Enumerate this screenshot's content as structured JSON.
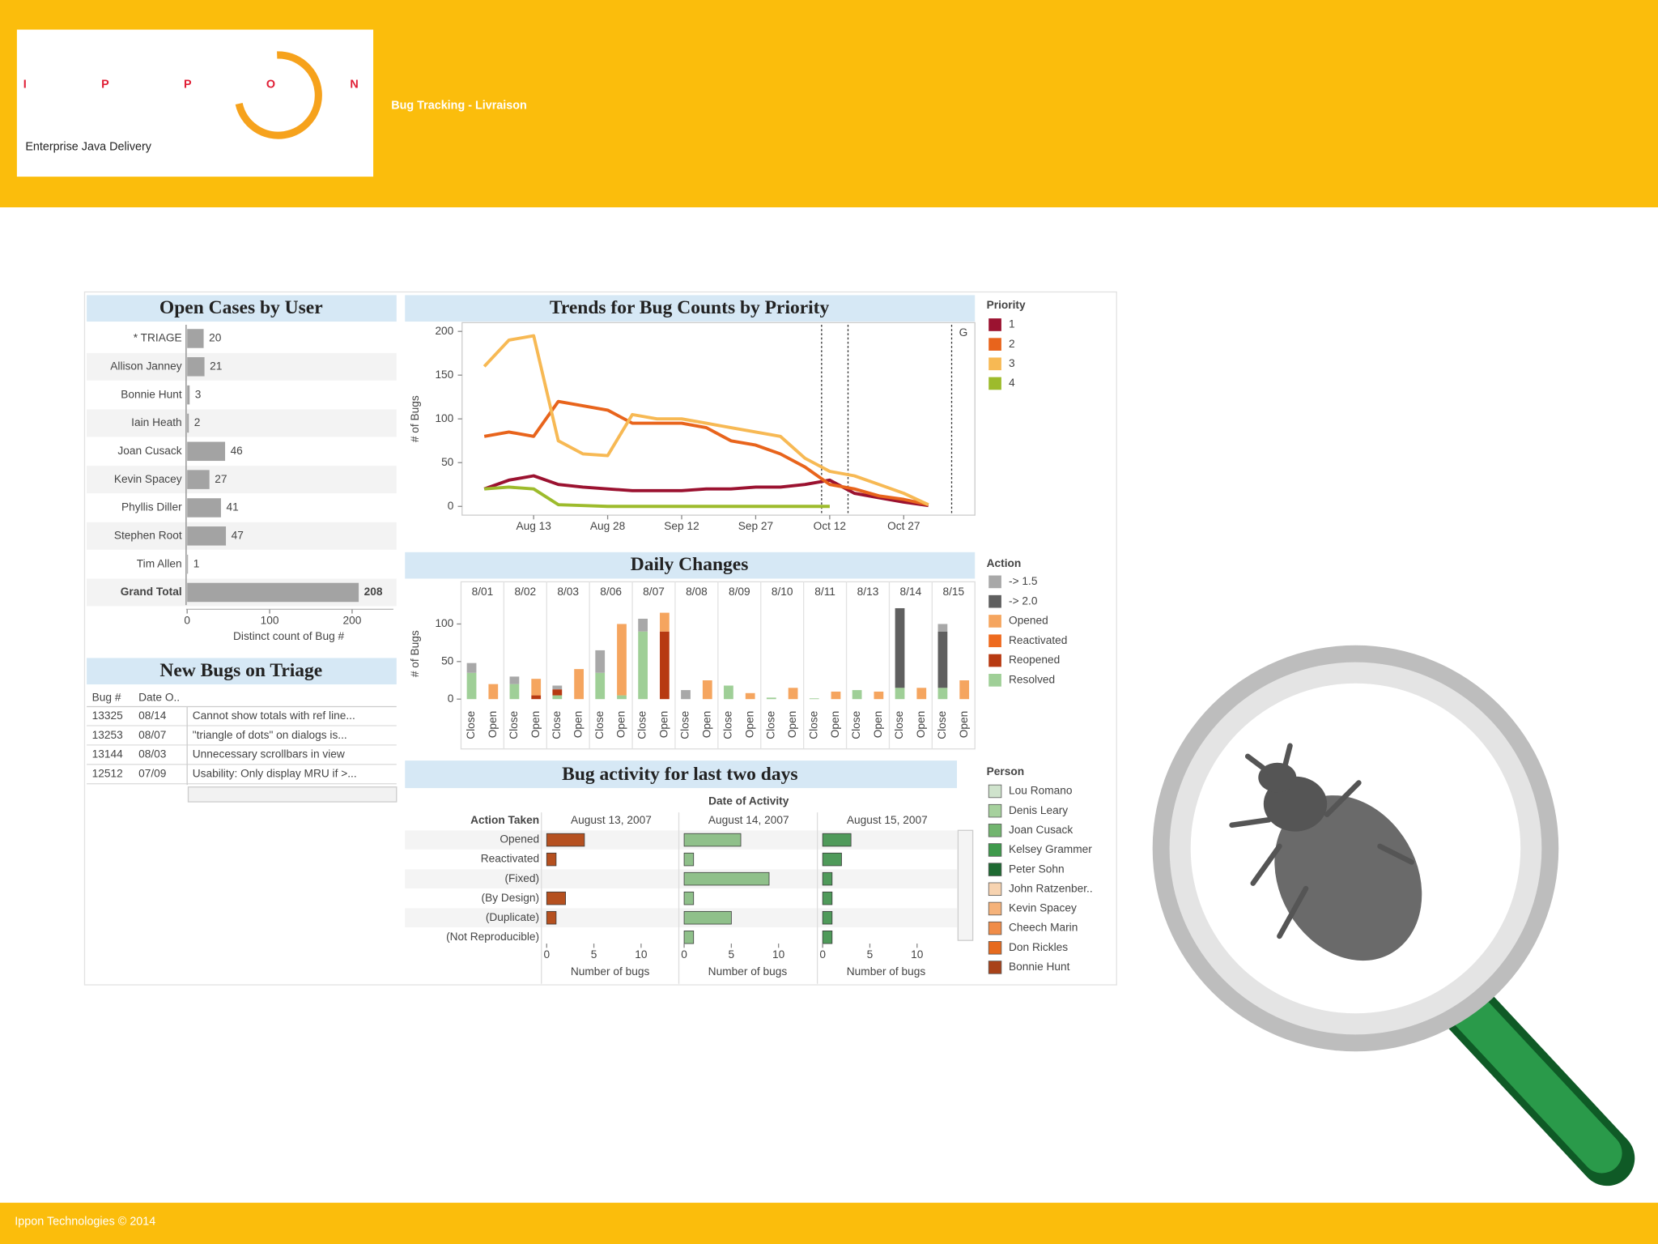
{
  "header": {
    "logo": {
      "name": "IPPON",
      "tagline": "Enterprise Java Delivery"
    },
    "title": "Bug Tracking - Livraison"
  },
  "dashboard": {
    "open_cases": {
      "title": "Open Cases by User",
      "categories": [
        "* TRIAGE",
        "Allison Janney",
        "Bonnie Hunt",
        "Iain Heath",
        "Joan Cusack",
        "Kevin Spacey",
        "Phyllis Diller",
        "Stephen Root",
        "Tim Allen",
        "Grand Total"
      ],
      "values": [
        20,
        21,
        3,
        2,
        46,
        27,
        41,
        47,
        1,
        208
      ],
      "color": "#a3a3a3",
      "xlim": [
        0,
        250
      ],
      "xticks": [
        0,
        100,
        200
      ],
      "x_label": "Distinct count of Bug #"
    },
    "new_bugs": {
      "title": "New Bugs on Triage",
      "columns": [
        "Bug #",
        "Date O.."
      ],
      "rows": [
        [
          "13325",
          "08/14",
          "Cannot show totals with ref line..."
        ],
        [
          "13253",
          "08/07",
          "\"triangle of dots\" on dialogs is..."
        ],
        [
          "13144",
          "08/03",
          "Unnecessary scrollbars in view"
        ],
        [
          "12512",
          "07/09",
          "Usability: Only display MRU if >..."
        ]
      ]
    },
    "trends": {
      "title": "Trends for Bug Counts by Priority",
      "y_label": "# of Bugs",
      "x": [
        null,
        null,
        "Aug 13",
        null,
        null,
        "Aug 28",
        null,
        null,
        "Sep 12",
        null,
        null,
        "Sep 27",
        null,
        null,
        "Oct 12",
        null,
        null,
        "Oct 27",
        null
      ],
      "ylim": [
        -10,
        210
      ],
      "yticks": [
        0,
        50,
        100,
        150,
        200
      ],
      "legend_title": "Priority",
      "annotation": "G",
      "series": [
        {
          "name": "1",
          "color": "#9b1230",
          "values": [
            20,
            30,
            35,
            25,
            22,
            20,
            18,
            18,
            18,
            20,
            20,
            22,
            22,
            25,
            30,
            15,
            10,
            5,
            1
          ]
        },
        {
          "name": "2",
          "color": "#e8641c",
          "values": [
            80,
            85,
            80,
            120,
            115,
            110,
            95,
            95,
            95,
            90,
            75,
            70,
            60,
            45,
            25,
            20,
            12,
            8,
            2
          ]
        },
        {
          "name": "3",
          "color": "#f7b954",
          "values": [
            160,
            190,
            195,
            75,
            60,
            58,
            105,
            100,
            100,
            95,
            90,
            85,
            80,
            55,
            40,
            35,
            25,
            15,
            2
          ]
        },
        {
          "name": "4",
          "color": "#9dbb2c",
          "values": [
            20,
            22,
            20,
            2,
            1,
            0,
            0,
            0,
            0,
            0,
            0,
            0,
            0,
            0,
            0,
            null,
            null,
            null,
            null
          ]
        }
      ]
    },
    "daily": {
      "title": "Daily Changes",
      "y_label": "# of Bugs",
      "dates": [
        "8/01",
        "8/02",
        "8/03",
        "8/06",
        "8/07",
        "8/08",
        "8/09",
        "8/10",
        "8/11",
        "8/13",
        "8/14",
        "8/15"
      ],
      "subcategories": [
        "Close",
        "Open"
      ],
      "ylim": [
        -10,
        128
      ],
      "yticks": [
        0,
        50,
        100
      ],
      "legend_title": "Action",
      "series": [
        {
          "name": "-> 1.5",
          "color": "#a8a8a8",
          "values": [
            13,
            0,
            10,
            0,
            5,
            0,
            30,
            0,
            17,
            0,
            12,
            0,
            0,
            0,
            0,
            0,
            0,
            0,
            0,
            0,
            0,
            0,
            10,
            0
          ]
        },
        {
          "name": "-> 2.0",
          "color": "#5f5f5f",
          "values": [
            0,
            0,
            0,
            0,
            0,
            0,
            0,
            0,
            0,
            0,
            0,
            0,
            0,
            0,
            0,
            0,
            0,
            0,
            0,
            0,
            106,
            0,
            75,
            0
          ]
        },
        {
          "name": "Opened",
          "color": "#f5a55f",
          "values": [
            0,
            20,
            0,
            22,
            0,
            40,
            0,
            95,
            0,
            25,
            0,
            25,
            0,
            8,
            0,
            15,
            0,
            10,
            0,
            10,
            0,
            15,
            0,
            25
          ]
        },
        {
          "name": "Reactivated",
          "color": "#ee6a1e",
          "values": [
            0,
            0,
            0,
            0,
            0,
            0,
            0,
            0,
            0,
            0,
            0,
            0,
            0,
            0,
            0,
            0,
            0,
            0,
            0,
            0,
            0,
            0,
            0,
            0
          ]
        },
        {
          "name": "Reopened",
          "color": "#b73a12",
          "values": [
            0,
            0,
            0,
            5,
            8,
            0,
            0,
            0,
            0,
            90,
            0,
            0,
            0,
            0,
            0,
            0,
            0,
            0,
            0,
            0,
            0,
            0,
            0,
            0
          ]
        },
        {
          "name": "Resolved",
          "color": "#9fcf97",
          "values": [
            35,
            0,
            20,
            0,
            5,
            0,
            35,
            5,
            90,
            0,
            0,
            0,
            18,
            0,
            2,
            0,
            1,
            0,
            12,
            0,
            15,
            0,
            15,
            0
          ]
        }
      ]
    },
    "activity": {
      "title": "Bug activity for last two days",
      "header": "Date of Activity",
      "row_header": "Action Taken",
      "actions": [
        "Opened",
        "Reactivated",
        "(Fixed)",
        "(By Design)",
        "(Duplicate)",
        "(Not Reproducible)"
      ],
      "dates": [
        {
          "label": "August 13, 2007",
          "color": "#b5501f",
          "values": [
            4,
            1,
            0,
            2,
            1,
            0
          ]
        },
        {
          "label": "August 14, 2007",
          "color": "#8fc08a",
          "values": [
            6,
            1,
            9,
            1,
            5,
            1
          ]
        },
        {
          "label": "August 15, 2007",
          "color": "#4f9a5a",
          "values": [
            3,
            2,
            1,
            1,
            1,
            1
          ]
        }
      ],
      "xlim": [
        0,
        14
      ],
      "xticks": [
        0,
        5,
        10
      ],
      "x_label": "Number of bugs",
      "legend_title": "Person",
      "people": [
        {
          "name": "Lou Romano",
          "color": "#cfe3cc"
        },
        {
          "name": "Denis Leary",
          "color": "#a6d19d"
        },
        {
          "name": "Joan Cusack",
          "color": "#72b56f"
        },
        {
          "name": "Kelsey Grammer",
          "color": "#3f9a4c"
        },
        {
          "name": "Peter Sohn",
          "color": "#1e6a32"
        },
        {
          "name": "John Ratzenber..",
          "color": "#f7d3b0"
        },
        {
          "name": "Kevin Spacey",
          "color": "#f5b27a"
        },
        {
          "name": "Cheech Marin",
          "color": "#f08c48"
        },
        {
          "name": "Don Rickles",
          "color": "#e66a1e"
        },
        {
          "name": "Bonnie Hunt",
          "color": "#a8421a"
        }
      ]
    }
  },
  "footer": {
    "text": "Ippon Technologies © 2014"
  }
}
